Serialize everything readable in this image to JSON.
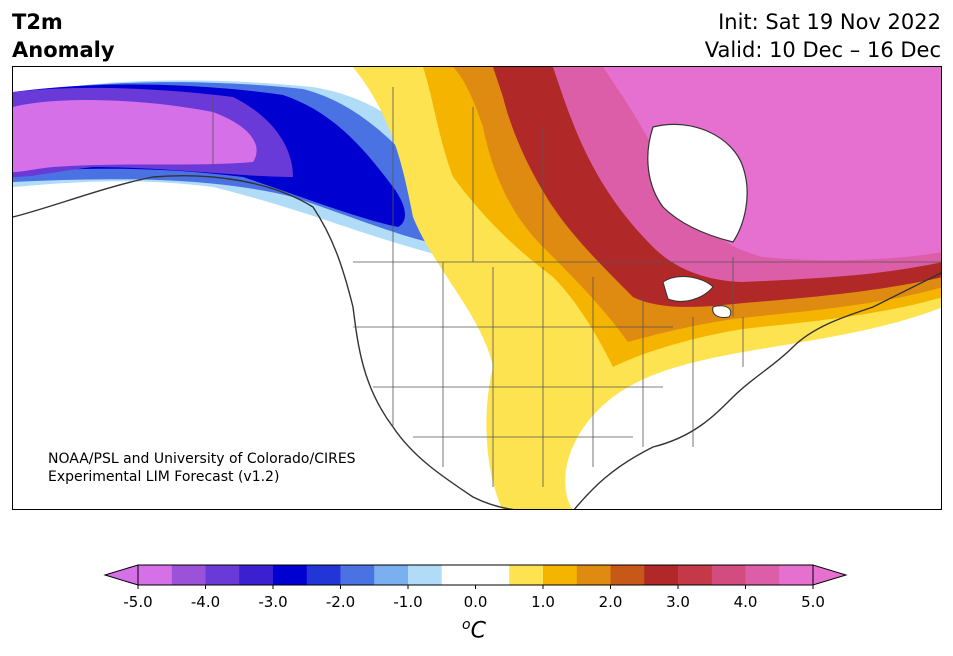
{
  "header": {
    "variable": "T2m",
    "subtitle": "Anomaly",
    "init": "Init: Sat 19 Nov 2022",
    "valid": "Valid: 10 Dec – 16 Dec"
  },
  "map": {
    "region": "North America",
    "overlay": "temperature-anomaly-shading"
  },
  "credit": {
    "line1": "NOAA/PSL and University of Colorado/CIRES",
    "line2": "Experimental LIM Forecast (v1.2)"
  },
  "colorbar": {
    "unit_sup": "o",
    "unit": "C",
    "tick_labels": [
      "-5.0",
      "-4.0",
      "-3.0",
      "-2.0",
      "-1.0",
      "0.0",
      "1.0",
      "2.0",
      "3.0",
      "4.0",
      "5.0"
    ],
    "colors": [
      "#d670e8",
      "#9c52d8",
      "#6a3ad8",
      "#3a20d0",
      "#0000d0",
      "#2236d8",
      "#4a72e2",
      "#7ab0f0",
      "#b0dcf8",
      "#ffffff",
      "#ffffff",
      "#fde350",
      "#f5b400",
      "#df8a10",
      "#c85818",
      "#b02828",
      "#c43848",
      "#d24c80",
      "#dc5ea8",
      "#e670d0"
    ],
    "extend_low": "#d670e8",
    "extend_high": "#e670d0"
  }
}
